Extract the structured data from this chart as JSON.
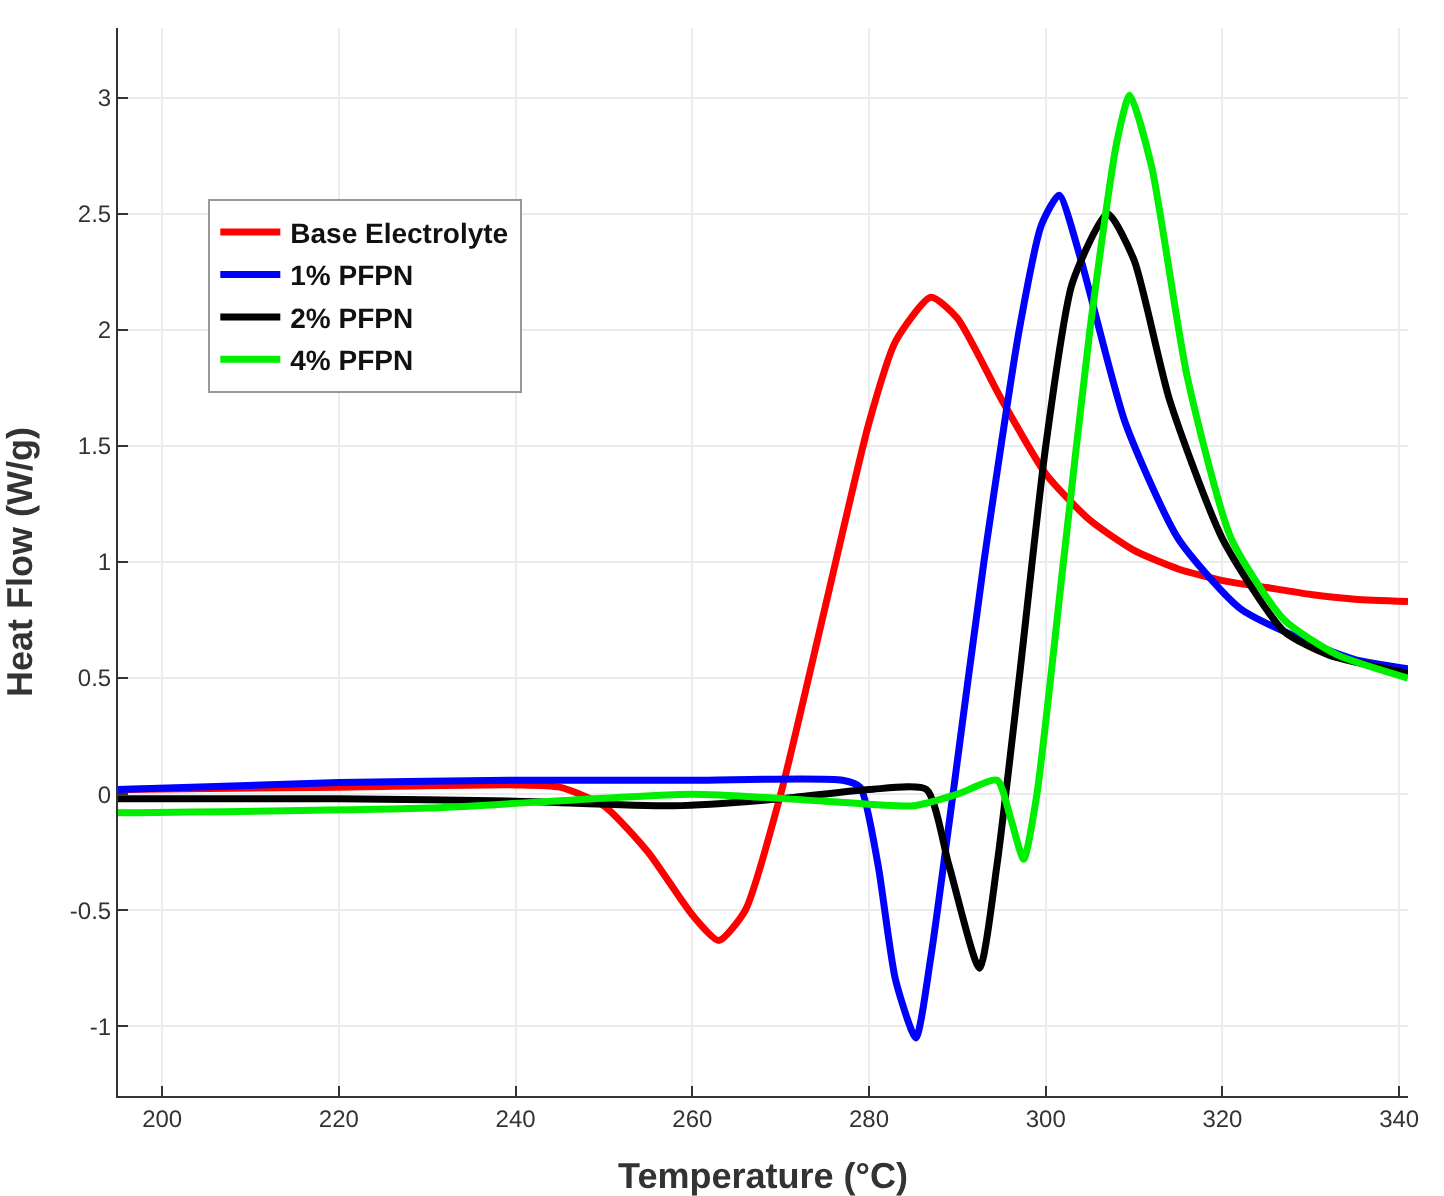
{
  "chart_data": {
    "type": "line",
    "xlabel": "Temperature (°C)",
    "ylabel": "Heat Flow (W/g)",
    "xlim": [
      195,
      341
    ],
    "ylim": [
      -1.3,
      3.3
    ],
    "xticks": [
      200,
      220,
      240,
      260,
      280,
      300,
      320,
      340
    ],
    "yticks": [
      -1,
      -0.5,
      0,
      0.5,
      1,
      1.5,
      2,
      2.5,
      3
    ],
    "grid": true,
    "legend": "top left",
    "line_style": "solid",
    "marker": "none",
    "series": [
      {
        "name": "Base Electrolyte",
        "color": "#ff0000",
        "x": [
          195,
          220,
          240,
          245,
          250,
          255,
          260,
          263,
          266,
          270,
          275,
          280,
          283,
          287,
          290,
          295,
          300,
          305,
          310,
          315,
          320,
          325,
          330,
          335,
          341
        ],
        "values": [
          0.02,
          0.03,
          0.04,
          0.03,
          -0.05,
          -0.25,
          -0.52,
          -0.63,
          -0.5,
          0,
          0.8,
          1.6,
          1.95,
          2.14,
          2.05,
          1.7,
          1.38,
          1.18,
          1.05,
          0.97,
          0.92,
          0.89,
          0.86,
          0.84,
          0.83
        ]
      },
      {
        "name": "1% PFPN",
        "color": "#0000ff",
        "x": [
          195,
          220,
          240,
          260,
          277,
          279,
          281,
          283,
          285.3,
          287,
          289.5,
          293,
          297,
          299.5,
          301.5,
          304,
          309,
          315,
          322,
          330,
          335,
          341
        ],
        "values": [
          0.02,
          0.05,
          0.06,
          0.06,
          0.06,
          0.03,
          -0.3,
          -0.8,
          -1.05,
          -0.7,
          0,
          1.0,
          2.0,
          2.45,
          2.58,
          2.3,
          1.6,
          1.1,
          0.8,
          0.65,
          0.58,
          0.54
        ]
      },
      {
        "name": "2% PFPN",
        "color": "#000000",
        "x": [
          195,
          220,
          240,
          258,
          270,
          280,
          286.5,
          289,
          292.5,
          294.5,
          297,
          300,
          303,
          307,
          310,
          314,
          320,
          327,
          332,
          341
        ],
        "values": [
          -0.02,
          -0.02,
          -0.03,
          -0.05,
          -0.02,
          0.02,
          0.02,
          -0.3,
          -0.75,
          -0.3,
          0.5,
          1.5,
          2.2,
          2.5,
          2.3,
          1.7,
          1.1,
          0.7,
          0.6,
          0.52
        ]
      },
      {
        "name": "4% PFPN",
        "color": "#00ee00",
        "x": [
          195,
          230,
          260,
          275,
          285,
          290,
          294.5,
          296,
          297.5,
          299,
          302,
          305,
          308,
          309.5,
          312,
          316,
          321,
          327,
          333,
          341
        ],
        "values": [
          -0.08,
          -0.06,
          0,
          -0.03,
          -0.05,
          0,
          0.06,
          -0.1,
          -0.28,
          0,
          1.0,
          2.0,
          2.8,
          3.01,
          2.7,
          1.8,
          1.1,
          0.75,
          0.6,
          0.5
        ]
      }
    ]
  }
}
